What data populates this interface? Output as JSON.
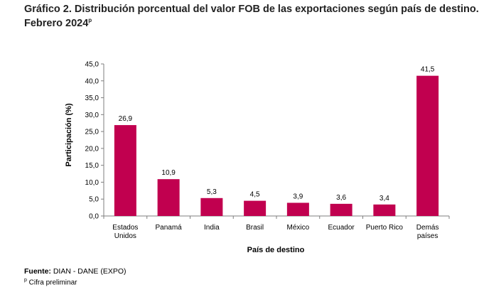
{
  "header": {
    "title_line1": "Gráfico 2. Distribución porcentual del valor FOB de las exportaciones según país de destino.",
    "title_line2": "Febrero 2024",
    "title_sup": "p"
  },
  "footer": {
    "source_label": "Fuente:",
    "source_text": " DIAN - DANE (EXPO)",
    "note_sup": "p",
    "note_text": " Cifra preliminar"
  },
  "chart_data": {
    "type": "bar",
    "categories": [
      "Estados Unidos",
      "Panamá",
      "India",
      "Brasil",
      "México",
      "Ecuador",
      "Puerto Rico",
      "Demás países"
    ],
    "category_lines": [
      [
        "Estados",
        "Unidos"
      ],
      [
        "Panamá"
      ],
      [
        "India"
      ],
      [
        "Brasil"
      ],
      [
        "México"
      ],
      [
        "Ecuador"
      ],
      [
        "Puerto Rico"
      ],
      [
        "Demás",
        "países"
      ]
    ],
    "values": [
      26.9,
      10.9,
      5.3,
      4.5,
      3.9,
      3.6,
      3.4,
      41.5
    ],
    "value_labels": [
      "26,9",
      "10,9",
      "5,3",
      "4,5",
      "3,9",
      "3,6",
      "3,4",
      "41,5"
    ],
    "xlabel": "País de destino",
    "ylabel": "Participación (%)",
    "ylim": [
      0,
      45
    ],
    "yticks": [
      0,
      5,
      10,
      15,
      20,
      25,
      30,
      35,
      40,
      45
    ],
    "ytick_labels": [
      "0,0",
      "5,0",
      "10,0",
      "15,0",
      "20,0",
      "25,0",
      "30,0",
      "35,0",
      "40,0",
      "45,0"
    ],
    "bar_color": "#c1004f",
    "axis_color": "#7f7f7f",
    "grid": false,
    "legend": false
  }
}
